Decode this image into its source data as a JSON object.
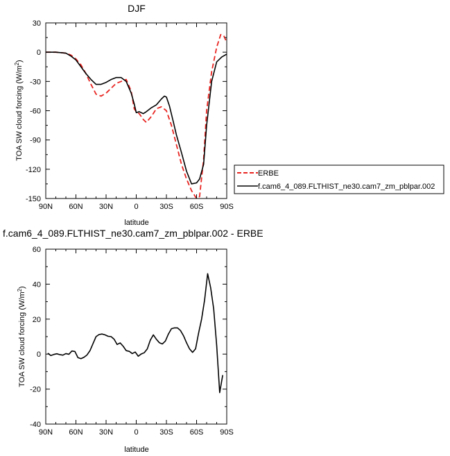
{
  "chart_data": [
    {
      "type": "line",
      "title": "DJF",
      "xlabel": "latitude",
      "ylabel_main": "TOA SW cloud forcing (W/m",
      "ylabel_sup": "2",
      "ylabel_close": ")",
      "xlim": [
        90,
        -90
      ],
      "ylim": [
        -150,
        30
      ],
      "x_ticks": [
        90,
        60,
        30,
        0,
        -30,
        -60,
        -90
      ],
      "x_tick_labels": [
        "90N",
        "60N",
        "30N",
        "0",
        "30S",
        "60S",
        "90S"
      ],
      "y_ticks": [
        30,
        0,
        -30,
        -60,
        -90,
        -120,
        -150
      ],
      "y_tick_labels": [
        "30",
        "0",
        "-30",
        "-60",
        "-90",
        "-120",
        "-150"
      ],
      "grid": false,
      "legend_position": "right",
      "series": [
        {
          "name": "ERBE",
          "color": "#e8231f",
          "dashed": true,
          "x": [
            90,
            80,
            70,
            65,
            60,
            55,
            50,
            45,
            40,
            35,
            30,
            25,
            20,
            15,
            10,
            5,
            2,
            0,
            -3,
            -7,
            -10,
            -15,
            -20,
            -25,
            -30,
            -35,
            -40,
            -45,
            -50,
            -55,
            -60,
            -63,
            -67,
            -70,
            -75,
            -80,
            -84,
            -87,
            -90
          ],
          "y": [
            0,
            0,
            -1,
            -3,
            -7,
            -13,
            -22,
            -33,
            -43,
            -45,
            -42,
            -37,
            -32,
            -30,
            -28,
            -40,
            -58,
            -61,
            -63,
            -69,
            -72,
            -66,
            -58,
            -56,
            -60,
            -75,
            -95,
            -115,
            -130,
            -142,
            -150,
            -148,
            -110,
            -60,
            -20,
            5,
            18,
            17,
            10
          ]
        },
        {
          "name": "f.cam6_4_089.FLTHIST_ne30.cam7_zm_pblpar.002",
          "color": "#000000",
          "dashed": false,
          "x": [
            90,
            80,
            70,
            65,
            60,
            55,
            50,
            45,
            40,
            35,
            30,
            25,
            20,
            15,
            10,
            5,
            2,
            0,
            -3,
            -7,
            -10,
            -15,
            -20,
            -25,
            -28,
            -30,
            -33,
            -37,
            -40,
            -45,
            -50,
            -55,
            -60,
            -63,
            -67,
            -70,
            -75,
            -80,
            -85,
            -90
          ],
          "y": [
            0,
            0,
            -1,
            -4,
            -8,
            -15,
            -22,
            -28,
            -33,
            -33,
            -31,
            -28,
            -26,
            -26,
            -30,
            -42,
            -53,
            -62,
            -61,
            -63,
            -61,
            -57,
            -54,
            -48,
            -45,
            -46,
            -55,
            -72,
            -85,
            -103,
            -122,
            -135,
            -134,
            -130,
            -115,
            -75,
            -30,
            -10,
            -5,
            -2
          ]
        }
      ]
    },
    {
      "type": "line",
      "title": "f.cam6_4_089.FLTHIST_ne30.cam7_zm_pblpar.002 - ERBE",
      "xlabel": "latitude",
      "ylabel_main": "TOA SW cloud forcing (W/m",
      "ylabel_sup": "2",
      "ylabel_close": ")",
      "xlim": [
        90,
        -90
      ],
      "ylim": [
        -40,
        60
      ],
      "x_ticks": [
        90,
        60,
        30,
        0,
        -30,
        -60,
        -90
      ],
      "x_tick_labels": [
        "90N",
        "60N",
        "30N",
        "0",
        "30S",
        "60S",
        "90S"
      ],
      "y_ticks": [
        60,
        40,
        20,
        0,
        -20,
        -40
      ],
      "y_tick_labels": [
        "60",
        "40",
        "20",
        "0",
        "-20",
        "-40"
      ],
      "grid": false,
      "series": [
        {
          "color": "#000000",
          "dashed": false,
          "x": [
            88,
            85,
            82,
            79,
            76,
            73,
            70,
            67,
            64,
            61,
            58,
            55,
            52,
            49,
            46,
            43,
            40,
            37,
            34,
            31,
            28,
            25,
            22,
            19,
            16,
            13,
            10,
            7,
            4,
            1,
            -2,
            -5,
            -8,
            -11,
            -14,
            -17,
            -20,
            -23,
            -26,
            -29,
            -32,
            -35,
            -38,
            -41,
            -44,
            -47,
            -50,
            -53,
            -56,
            -59,
            -62,
            -65,
            -68,
            -71,
            -74,
            -77,
            -80,
            -83,
            -86
          ],
          "y": [
            0.5,
            -0.8,
            -0.2,
            0.2,
            -0.3,
            -0.6,
            0.3,
            -0.1,
            1.8,
            1.5,
            -2.0,
            -2.6,
            -1.8,
            -0.5,
            2.0,
            6.0,
            10.0,
            11.2,
            11.5,
            11.0,
            10.2,
            10.0,
            8.5,
            5.5,
            6.4,
            4.5,
            2.0,
            1.6,
            0.3,
            1.2,
            -1.2,
            0.1,
            0.8,
            3.0,
            8.0,
            11.0,
            8.5,
            6.5,
            5.8,
            7.5,
            11.5,
            14.5,
            15.0,
            15.0,
            13.5,
            10.5,
            6.5,
            3.0,
            1.0,
            3.0,
            12.0,
            20.0,
            31.0,
            46.0,
            38.0,
            26.0,
            5.0,
            -22.0,
            -12.0
          ]
        }
      ]
    }
  ],
  "legend": {
    "entries": [
      "ERBE",
      "f.cam6_4_089.FLTHIST_ne30.cam7_zm_pblpar.002"
    ]
  }
}
